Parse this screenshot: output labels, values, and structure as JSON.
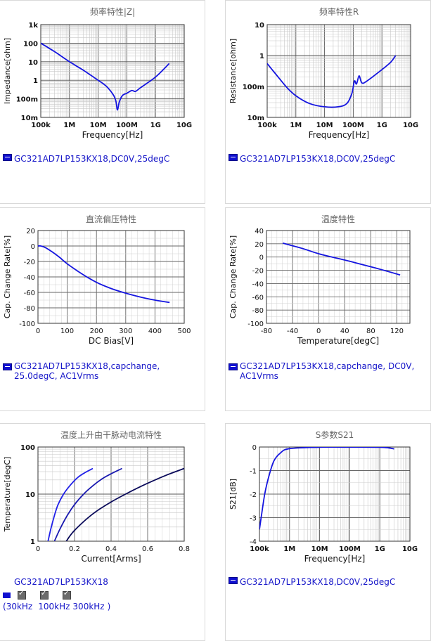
{
  "charts": [
    {
      "id": "impedance",
      "title": "频率特性|Z|",
      "xlabel": "Frequency[Hz]",
      "ylabel": "Impedance[ohm]",
      "legend": "GC321AD7LP153KX18,DC0V,25degC",
      "xticks": [
        "100k",
        "1M",
        "10M",
        "100M",
        "1G",
        "10G"
      ],
      "yticks": [
        "10m",
        "100m",
        "1",
        "10",
        "100",
        "1k"
      ]
    },
    {
      "id": "resistance",
      "title": "频率特性R",
      "xlabel": "Frequency[Hz]",
      "ylabel": "Resistance[ohm]",
      "legend": "GC321AD7LP153KX18,DC0V,25degC",
      "xticks": [
        "100k",
        "1M",
        "10M",
        "100M",
        "1G",
        "10G"
      ],
      "yticks": [
        "10m",
        "100m",
        "1",
        "10"
      ]
    },
    {
      "id": "dcbias",
      "title": "直流偏压特性",
      "xlabel": "DC Bias[V]",
      "ylabel": "Cap. Change Rate[%]",
      "legend": "GC321AD7LP153KX18,capchange, 25.0degC, AC1Vrms",
      "xticks": [
        "0",
        "100",
        "200",
        "300",
        "400",
        "500"
      ],
      "yticks": [
        "20",
        "0",
        "-20",
        "-40",
        "-60",
        "-80",
        "-100"
      ]
    },
    {
      "id": "temperature",
      "title": "温度特性",
      "xlabel": "Temperature[degC]",
      "ylabel": "Cap. Change Rate[%]",
      "legend": "GC321AD7LP153KX18,capchange, DC0V, AC1Vrms",
      "xticks": [
        "-80",
        "-40",
        "0",
        "40",
        "80",
        "120"
      ],
      "yticks": [
        "40",
        "20",
        "0",
        "-20",
        "-40",
        "-60",
        "-80",
        "-100"
      ]
    },
    {
      "id": "ripple",
      "title": "温度上升由干脉动电流特性",
      "xlabel": "Current[Arms]",
      "ylabel": "Temperature[degC]",
      "legend": "GC321AD7LP153KX18",
      "xticks": [
        "0",
        "0.2",
        "0.4",
        "0.6",
        "0.8"
      ],
      "yticks": [
        "1",
        "10",
        "100"
      ],
      "checks": [
        "30kHz",
        "100kHz",
        "300kHz"
      ]
    },
    {
      "id": "s21",
      "title": "S参数S21",
      "xlabel": "Frequency[Hz]",
      "ylabel": "S21[dB]",
      "legend": "GC321AD7LP153KX18,DC0V,25degC",
      "xticks": [
        "100k",
        "1M",
        "10M",
        "100M",
        "1G",
        "10G"
      ],
      "yticks": [
        "0",
        "-1",
        "-2",
        "-3",
        "-4"
      ]
    }
  ],
  "chart_data": [
    {
      "type": "line",
      "title": "频率特性|Z|",
      "xlabel": "Frequency[Hz]",
      "ylabel": "Impedance[ohm]",
      "xscale": "log",
      "yscale": "log",
      "xlim": [
        100000,
        10000000000
      ],
      "ylim": [
        0.01,
        1000
      ],
      "series": [
        {
          "name": "GC321AD7LP153KX18,DC0V,25degC",
          "x": [
            100000,
            300000,
            1000000,
            3000000,
            10000000,
            20000000,
            35000000,
            42000000,
            47000000,
            55000000,
            70000000,
            100000000,
            150000000,
            200000000,
            300000000,
            1000000000,
            3000000000
          ],
          "y": [
            100,
            35,
            10,
            3.5,
            1.0,
            0.45,
            0.15,
            0.07,
            0.025,
            0.07,
            0.15,
            0.2,
            0.28,
            0.25,
            0.4,
            1.5,
            8
          ]
        }
      ]
    },
    {
      "type": "line",
      "title": "频率特性R",
      "xlabel": "Frequency[Hz]",
      "ylabel": "Resistance[ohm]",
      "xscale": "log",
      "yscale": "log",
      "xlim": [
        100000,
        10000000000
      ],
      "ylim": [
        0.01,
        10
      ],
      "series": [
        {
          "name": "GC321AD7LP153KX18,DC0V,25degC",
          "x": [
            100000,
            200000,
            500000,
            1000000,
            3000000,
            10000000,
            30000000,
            60000000,
            90000000,
            110000000,
            130000000,
            160000000,
            200000000,
            300000000,
            1000000000,
            2000000000,
            3000000000
          ],
          "y": [
            0.55,
            0.25,
            0.09,
            0.05,
            0.028,
            0.022,
            0.022,
            0.028,
            0.06,
            0.15,
            0.12,
            0.22,
            0.13,
            0.15,
            0.35,
            0.6,
            1.0
          ]
        }
      ]
    },
    {
      "type": "line",
      "title": "直流偏压特性",
      "xlabel": "DC Bias[V]",
      "ylabel": "Cap. Change Rate[%]",
      "xlim": [
        0,
        500
      ],
      "ylim": [
        -100,
        20
      ],
      "series": [
        {
          "name": "GC321AD7LP153KX18,capchange, 25.0degC, AC1Vrms",
          "x": [
            0,
            10,
            25,
            50,
            75,
            100,
            150,
            200,
            250,
            300,
            350,
            400,
            450
          ],
          "y": [
            0,
            0,
            -2,
            -8,
            -15,
            -23,
            -36,
            -47,
            -55,
            -61,
            -66,
            -70,
            -73
          ]
        }
      ]
    },
    {
      "type": "line",
      "title": "温度特性",
      "xlabel": "Temperature[degC]",
      "ylabel": "Cap. Change Rate[%]",
      "xlim": [
        -80,
        140
      ],
      "ylim": [
        -100,
        40
      ],
      "series": [
        {
          "name": "GC321AD7LP153KX18,capchange, DC0V, AC1Vrms",
          "x": [
            -55,
            -25,
            0,
            25,
            50,
            85,
            125
          ],
          "y": [
            21,
            13,
            5,
            -1,
            -7,
            -16,
            -27
          ]
        }
      ]
    },
    {
      "type": "line",
      "title": "温度上升由干脉动电流特性",
      "xlabel": "Current[Arms]",
      "ylabel": "Temperature[degC]",
      "yscale": "log",
      "xlim": [
        0,
        0.8
      ],
      "ylim": [
        1,
        100
      ],
      "series": [
        {
          "name": "30kHz",
          "x": [
            0.155,
            0.2,
            0.3,
            0.4,
            0.5,
            0.6,
            0.7,
            0.8
          ],
          "y": [
            1,
            1.7,
            3.8,
            6.8,
            11,
            17,
            25,
            35
          ]
        },
        {
          "name": "100kHz",
          "x": [
            0.09,
            0.12,
            0.16,
            0.2,
            0.25,
            0.3,
            0.35,
            0.4,
            0.46
          ],
          "y": [
            1,
            1.8,
            3.5,
            6,
            10,
            15,
            21,
            27,
            35
          ]
        },
        {
          "name": "300kHz",
          "x": [
            0.055,
            0.07,
            0.09,
            0.11,
            0.14,
            0.18,
            0.22,
            0.26,
            0.3
          ],
          "y": [
            1,
            1.8,
            3.5,
            6,
            10,
            16,
            23,
            29,
            35
          ]
        }
      ]
    },
    {
      "type": "line",
      "title": "S参数S21",
      "xlabel": "Frequency[Hz]",
      "ylabel": "S21[dB]",
      "xscale": "log",
      "xlim": [
        100000,
        10000000000
      ],
      "ylim": [
        -4,
        0
      ],
      "series": [
        {
          "name": "GC321AD7LP153KX18,DC0V,25degC",
          "x": [
            100000,
            120000,
            150000,
            200000,
            300000,
            500000,
            1000000,
            10000000,
            100000000,
            1000000000,
            2000000000,
            3000000000
          ],
          "y": [
            -3.5,
            -2.8,
            -2.0,
            -1.3,
            -0.6,
            -0.25,
            -0.07,
            -0.01,
            -0.005,
            -0.01,
            -0.04,
            -0.08
          ]
        }
      ]
    }
  ]
}
